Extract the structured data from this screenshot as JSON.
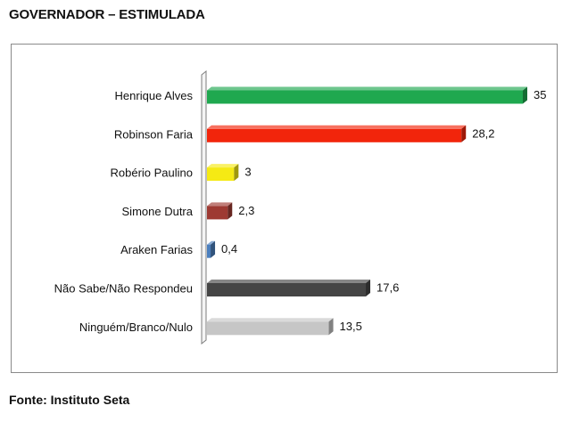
{
  "title": "GOVERNADOR – ESTIMULADA",
  "source": "Fonte: Instituto Seta",
  "chart_data": {
    "type": "bar",
    "orientation": "horizontal",
    "title": "GOVERNADOR – ESTIMULADA",
    "categories": [
      "Henrique Alves",
      "Robinson Faria",
      "Robério Paulino",
      "Simone Dutra",
      "Araken Farias",
      "Não Sabe/Não Respondeu",
      "Ninguém/Branco/Nulo"
    ],
    "values": [
      35,
      28.2,
      3,
      2.3,
      0.4,
      17.6,
      13.5
    ],
    "value_labels": [
      "35",
      "28,2",
      "3",
      "2,3",
      "0,4",
      "17,6",
      "13,5"
    ],
    "colors": [
      "#1fa84f",
      "#f2250b",
      "#f5ea14",
      "#9e3a33",
      "#4b7fbe",
      "#454545",
      "#c6c6c6"
    ],
    "xlim": [
      0,
      35
    ],
    "grid": false,
    "legend": "none"
  }
}
